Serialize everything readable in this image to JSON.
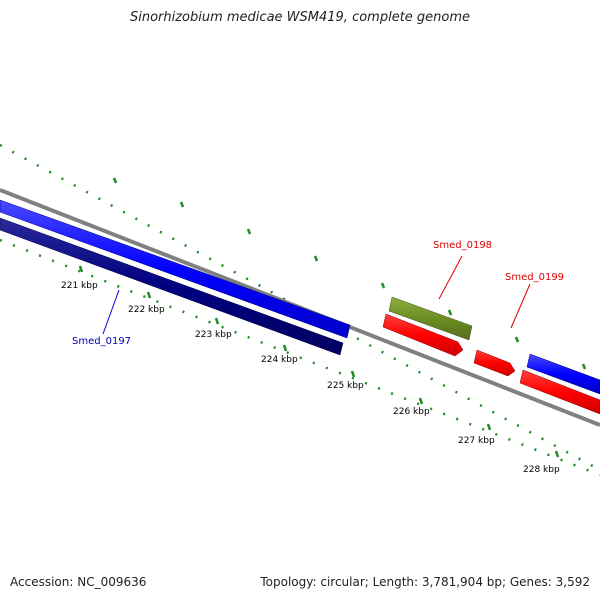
{
  "title": "Sinorhizobium medicae WSM419, complete genome",
  "footer": {
    "accession": "Accession: NC_009636",
    "stats": "Topology: circular; Length: 3,781,904 bp; Genes: 3,592"
  },
  "ticks": [
    {
      "label": "221 kbp"
    },
    {
      "label": "222 kbp"
    },
    {
      "label": "223 kbp"
    },
    {
      "label": "224 kbp"
    },
    {
      "label": "225 kbp"
    },
    {
      "label": "226 kbp"
    },
    {
      "label": "227 kbp"
    },
    {
      "label": "228 kbp"
    }
  ],
  "genes": [
    {
      "name": "Smed_0197",
      "color": "#0000aa"
    },
    {
      "name": "Smed_0198",
      "color": "#dd0000"
    },
    {
      "name": "Smed_0199",
      "color": "#dd0000"
    }
  ],
  "colors": {
    "forward_strand": "#0000ff",
    "reverse_strand": "#ff0000",
    "dark_blue_feature": "#000080",
    "olive_feature": "#6b8e23",
    "backbone": "#808080",
    "tick_marks": "#228b22"
  }
}
